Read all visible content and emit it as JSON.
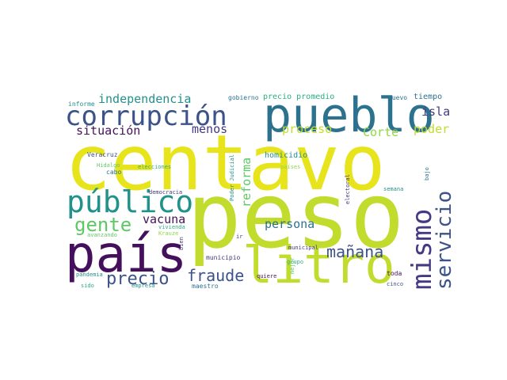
{
  "words": {
    "centavo": "centavo",
    "peso": "peso",
    "pais": "país",
    "litro": "litro",
    "pueblo": "pueblo",
    "corrupcion": "corrupción",
    "publico": "público",
    "mismo": "mismo",
    "servicio": "servicio",
    "precio": "precio",
    "fraude": "fraude",
    "gente": "gente",
    "manana": "mañana",
    "vacuna": "vacuna",
    "persona": "persona",
    "independencia": "independencia",
    "situacion": "situación",
    "menos": "menos",
    "proceso": "proceso",
    "corte": "Corte",
    "poder": "poder",
    "isla": "isla",
    "reforma": "reforma",
    "homicidio": "homicidio",
    "precio_promedio": "precio promedio",
    "gobierno": "gobierno",
    "nuevo": "nuevo",
    "tiempo": "tiempo",
    "informe": "informe",
    "veracruz": "Veracruz",
    "hidalgo": "Hidalgo",
    "elecciones": "elecciones",
    "cabo": "cabo",
    "democracia": "democracia",
    "vivienda": "vivienda",
    "krauze": "Krauze",
    "avanzando": "avanzando",
    "pandemia": "pandemia",
    "sido": "sido",
    "empresa": "empresa",
    "maestro": "maestro",
    "municipio": "municipio",
    "municipal": "municipal",
    "grupo": "grupo",
    "quiere": "quiere",
    "toda": "toda",
    "cinco": "cinco",
    "paises": "países",
    "poder_judicial": "Poder Judicial",
    "electoral": "electoral",
    "semana": "semana",
    "bajo": "bajo",
    "bien": "bien",
    "ir": "ir",
    "mejor": "mejor"
  },
  "colors": {
    "bright_yellow": "#e8e41c",
    "lime": "#c1dc2c",
    "deep_purple": "#45105b",
    "indigo": "#443983",
    "slate_blue": "#3b528b",
    "teal_blue": "#2c728e",
    "teal": "#21918c",
    "sea_green": "#2aaf7f",
    "green": "#5dc963",
    "light_green": "#8fd744"
  }
}
